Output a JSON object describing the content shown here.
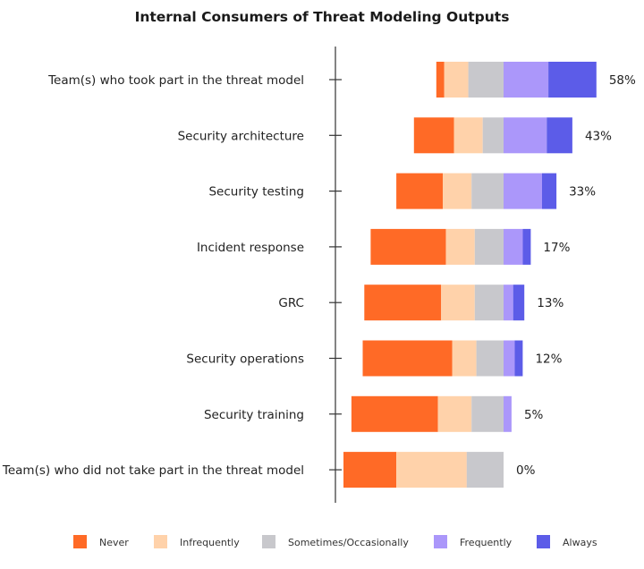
{
  "chart_data": {
    "type": "bar",
    "orientation": "horizontal",
    "stacking": "diverging",
    "title": "Internal Consumers of Threat Modeling Outputs",
    "categories": [
      "Team(s) who took part in the threat model",
      "Security architecture",
      "Security testing",
      "Incident response",
      "GRC",
      "Security operations",
      "Security training",
      "Team(s) who did not take part in the threat model"
    ],
    "series": [
      {
        "name": "Never",
        "color": "#ff6a26",
        "values": [
          5,
          25,
          29,
          47,
          48,
          56,
          54,
          33
        ]
      },
      {
        "name": "Infrequently",
        "color": "#ffd2aa",
        "values": [
          15,
          18,
          18,
          18,
          21,
          15,
          21,
          44
        ]
      },
      {
        "name": "Sometimes/Occasionally",
        "color": "#c8c8cc",
        "values": [
          22,
          13,
          20,
          18,
          18,
          17,
          20,
          23
        ]
      },
      {
        "name": "Frequently",
        "color": "#ab97fa",
        "values": [
          28,
          27,
          24,
          12,
          6,
          7,
          5,
          0
        ]
      },
      {
        "name": "Always",
        "color": "#5c5ce8",
        "values": [
          30,
          16,
          9,
          5,
          7,
          5,
          0,
          0
        ]
      }
    ],
    "data_labels": [
      "58%",
      "43%",
      "33%",
      "17%",
      "13%",
      "12%",
      "5%",
      "0%"
    ],
    "unit": "%",
    "legend_position": "bottom",
    "grid": false
  }
}
